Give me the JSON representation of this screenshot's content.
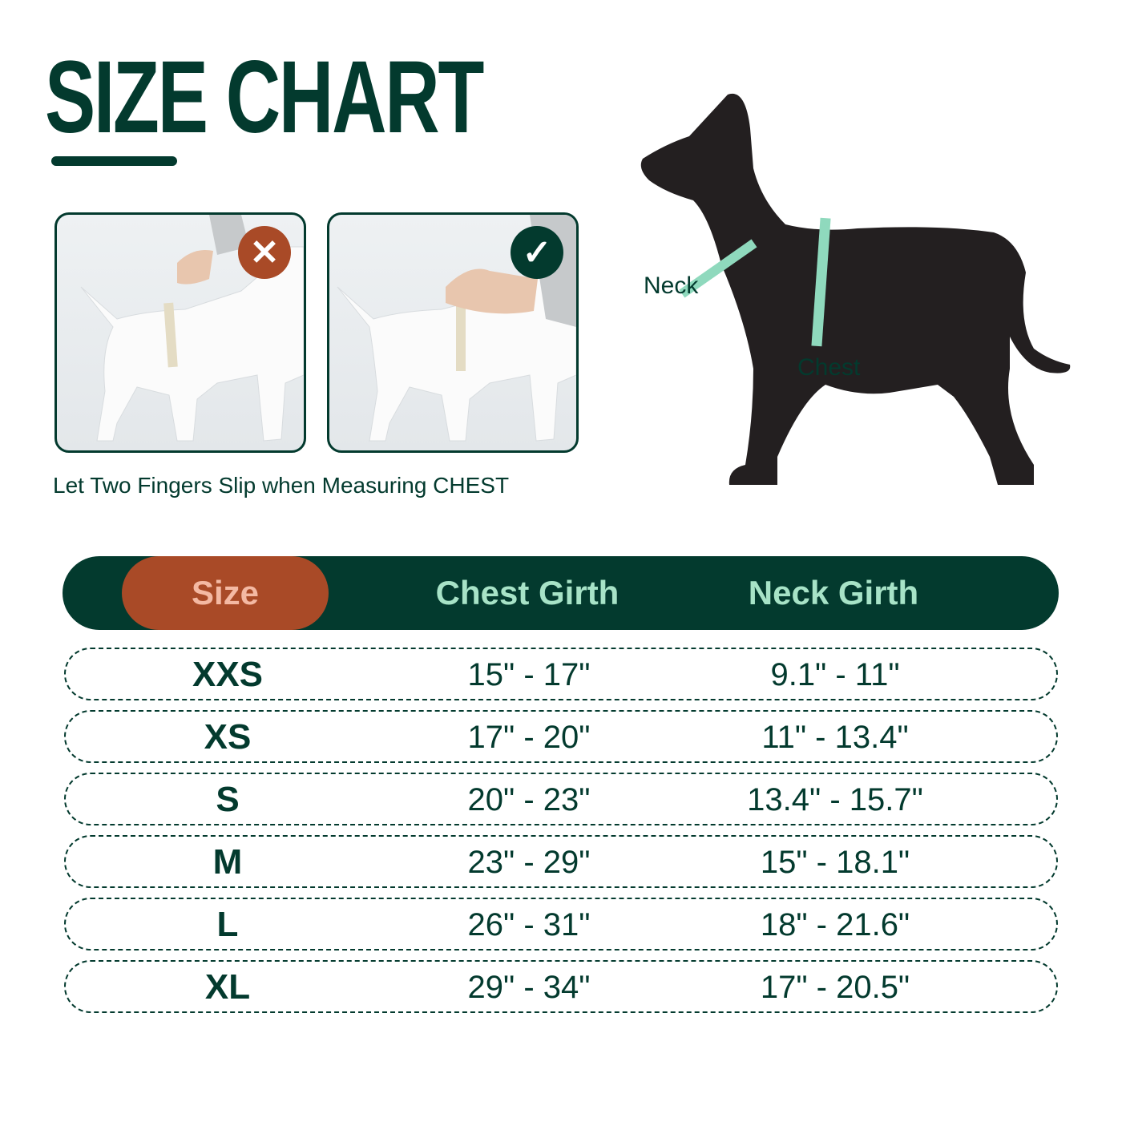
{
  "title": "SIZE CHART",
  "caption": "Let Two Fingers Slip when Measuring CHEST",
  "photos": [
    {
      "status": "wrong",
      "icon": "x-icon",
      "badge_color": "#a94a27"
    },
    {
      "status": "correct",
      "icon": "check-icon",
      "badge_color": "#033a2e"
    }
  ],
  "diagram": {
    "neck_label": "Neck",
    "chest_label": "Chest",
    "tape_color": "#8fd9bd",
    "dog_color": "#231f20"
  },
  "colors": {
    "primary": "#033a2e",
    "accent": "#a94a27",
    "header_text": "#a7e3c7",
    "size_text": "#f4b9a3"
  },
  "table": {
    "headers": [
      "Size",
      "Chest Girth",
      "Neck Girth"
    ],
    "rows": [
      [
        "XXS",
        "15\" - 17\"",
        "9.1\" - 11\""
      ],
      [
        "XS",
        "17\" - 20\"",
        "11\" - 13.4\""
      ],
      [
        "S",
        "20\" - 23\"",
        "13.4\" - 15.7\""
      ],
      [
        "M",
        "23\" - 29\"",
        "15\" - 18.1\""
      ],
      [
        "L",
        "26\" - 31\"",
        "18\" - 21.6\""
      ],
      [
        "XL",
        "29\" - 34\"",
        "17\" - 20.5\""
      ]
    ]
  }
}
